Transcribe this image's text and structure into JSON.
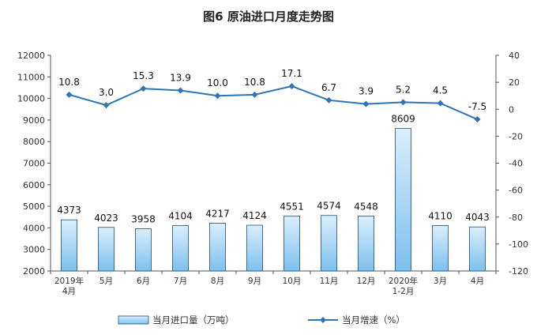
{
  "chart_data": {
    "title": "图6  原油进口月度走势图",
    "type": "bar",
    "categories": [
      [
        "2019年",
        "4月"
      ],
      [
        "5月"
      ],
      [
        "6月"
      ],
      [
        "7月"
      ],
      [
        "8月"
      ],
      [
        "9月"
      ],
      [
        "10月"
      ],
      [
        "11月"
      ],
      [
        "12月"
      ],
      [
        "2020年",
        "1-2月"
      ],
      [
        "3月"
      ],
      [
        "4月"
      ]
    ],
    "series": [
      {
        "name": "当月进口量（万吨）",
        "type": "bar",
        "axis": "left",
        "values": [
          4373,
          4023,
          3958,
          4104,
          4217,
          4124,
          4551,
          4574,
          4548,
          8609,
          4110,
          4043
        ],
        "labels": [
          "4373",
          "4023",
          "3958",
          "4104",
          "4217",
          "4124",
          "4551",
          "4574",
          "4548",
          "8609",
          "4110",
          "4043"
        ]
      },
      {
        "name": "当月增速（%）",
        "type": "line",
        "axis": "right",
        "values": [
          10.8,
          3.0,
          15.3,
          13.9,
          10.0,
          10.8,
          17.1,
          6.7,
          3.9,
          5.2,
          4.5,
          -7.5
        ],
        "labels": [
          "10.8",
          "3.0",
          "15.3",
          "13.9",
          "10.0",
          "10.8",
          "17.1",
          "6.7",
          "3.9",
          "5.2",
          "4.5",
          "-7.5"
        ]
      }
    ],
    "y_left": {
      "range": [
        2000,
        12000
      ],
      "ticks": [
        "2000",
        "3000",
        "4000",
        "5000",
        "6000",
        "7000",
        "8000",
        "9000",
        "10000",
        "11000",
        "12000"
      ]
    },
    "y_right": {
      "range": [
        -120,
        40
      ],
      "ticks": [
        "-120",
        "-100",
        "-80",
        "-60",
        "-40",
        "-20",
        "0",
        "20",
        "40"
      ]
    },
    "grid": false,
    "legend_position": "bottom",
    "colors": {
      "bar_fill_top": "#dbeefc",
      "bar_fill_bottom": "#7cc0ee",
      "bar_stroke": "#1f4e79",
      "line": "#2e75b6",
      "axis": "#555555"
    }
  }
}
